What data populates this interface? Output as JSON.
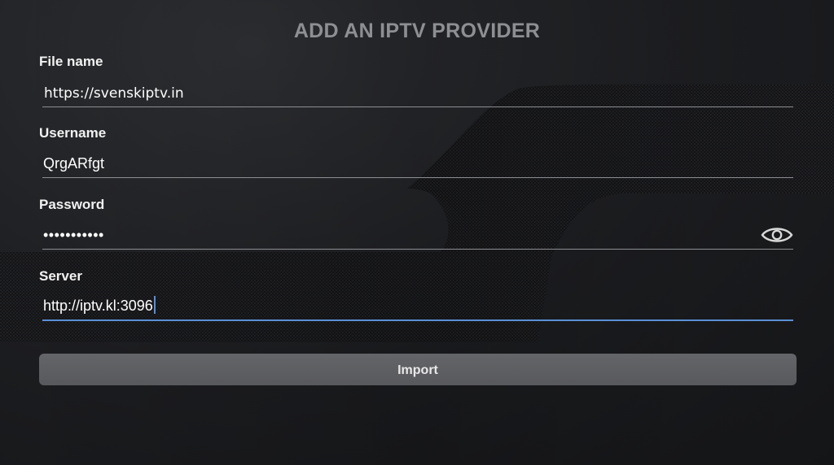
{
  "header": {
    "title": "ADD AN IPTV PROVIDER"
  },
  "form": {
    "file_name": {
      "label": "File name",
      "value": "https://svenskiptv.in"
    },
    "username": {
      "label": "Username",
      "value": "QrgARfgt"
    },
    "password": {
      "label": "Password",
      "value": "•••••••••••",
      "visibility_icon": "eye-icon"
    },
    "server": {
      "label": "Server",
      "value": "http://iptv.kl:3096"
    },
    "import_label": "Import"
  },
  "colors": {
    "background": "#1b1c1e",
    "title": "#8d8f93",
    "active_underline": "#5b8fd6",
    "button": "#5e5f62"
  }
}
